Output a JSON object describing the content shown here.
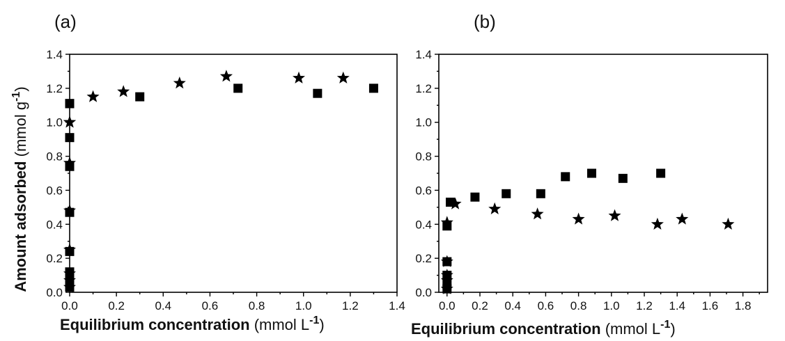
{
  "panels": [
    {
      "label": "(a)",
      "x_ticks": [
        "0.0",
        "0.2",
        "0.4",
        "0.6",
        "0.8",
        "1.0",
        "1.2",
        "1.4"
      ],
      "y_ticks": [
        "0.0",
        "0.2",
        "0.4",
        "0.6",
        "0.8",
        "1.0",
        "1.2",
        "1.4"
      ]
    },
    {
      "label": "(b)",
      "x_ticks": [
        "0.0",
        "0.2",
        "0.4",
        "0.6",
        "0.8",
        "1.0",
        "1.2",
        "1.4",
        "1.6",
        "1.8"
      ],
      "y_ticks": [
        "0.0",
        "0.2",
        "0.4",
        "0.6",
        "0.8",
        "1.0",
        "1.2",
        "1.4"
      ]
    }
  ],
  "y_title": {
    "prefix": "Amount adsorbed ",
    "unit_open": "(mmol g",
    "exp": "-1",
    "unit_close": ")"
  },
  "x_titles": [
    {
      "prefix": "Equilibrium concentration ",
      "unit_open": "(mmol L",
      "exp": "-1",
      "unit_close": ")"
    },
    {
      "prefix": "Equilibrium concentration ",
      "unit_open": "(mmol L",
      "exp": "-1",
      "unit_close": ")"
    }
  ],
  "chart_data": [
    {
      "type": "scatter",
      "title": "(a)",
      "xlabel": "Equilibrium concentration (mmol L-1)",
      "ylabel": "Amount adsorbed (mmol g-1)",
      "xlim": [
        0,
        1.4
      ],
      "ylim": [
        0,
        1.4
      ],
      "grid": false,
      "series": [
        {
          "marker": "square",
          "x": [
            0.0,
            0.0,
            0.0,
            0.0,
            0.0,
            0.0,
            0.0,
            0.0,
            0.0,
            0.0,
            0.0,
            0.3,
            0.72,
            1.06,
            1.3
          ],
          "y": [
            0.03,
            0.06,
            0.09,
            0.12,
            0.24,
            0.47,
            0.74,
            0.91,
            1.11,
            1.11,
            1.11,
            1.15,
            1.2,
            1.17,
            1.2
          ]
        },
        {
          "marker": "star",
          "x": [
            0.0,
            0.0,
            0.0,
            0.0,
            0.0,
            0.0,
            0.0,
            0.0,
            0.1,
            0.23,
            0.47,
            0.67,
            0.98,
            1.17
          ],
          "y": [
            0.03,
            0.07,
            0.11,
            0.25,
            0.48,
            0.76,
            1.0,
            1.0,
            1.15,
            1.18,
            1.23,
            1.27,
            1.26,
            1.26
          ]
        }
      ]
    },
    {
      "type": "scatter",
      "title": "(b)",
      "xlabel": "Equilibrium concentration (mmol L-1)",
      "ylabel": "Amount adsorbed (mmol g-1)",
      "xlim": [
        -0.05,
        1.95
      ],
      "ylim": [
        0,
        1.4
      ],
      "grid": false,
      "series": [
        {
          "marker": "square",
          "x": [
            0.0,
            0.0,
            0.0,
            0.0,
            0.0,
            0.02,
            0.17,
            0.36,
            0.57,
            0.72,
            0.88,
            1.07,
            1.3
          ],
          "y": [
            0.02,
            0.06,
            0.1,
            0.18,
            0.39,
            0.53,
            0.56,
            0.58,
            0.58,
            0.68,
            0.7,
            0.67,
            0.7
          ]
        },
        {
          "marker": "star",
          "x": [
            0.0,
            0.0,
            0.0,
            0.0,
            0.0,
            0.05,
            0.29,
            0.55,
            0.8,
            1.02,
            1.28,
            1.43,
            1.71
          ],
          "y": [
            0.02,
            0.07,
            0.1,
            0.18,
            0.41,
            0.52,
            0.49,
            0.46,
            0.43,
            0.45,
            0.4,
            0.43,
            0.4
          ]
        }
      ]
    }
  ]
}
